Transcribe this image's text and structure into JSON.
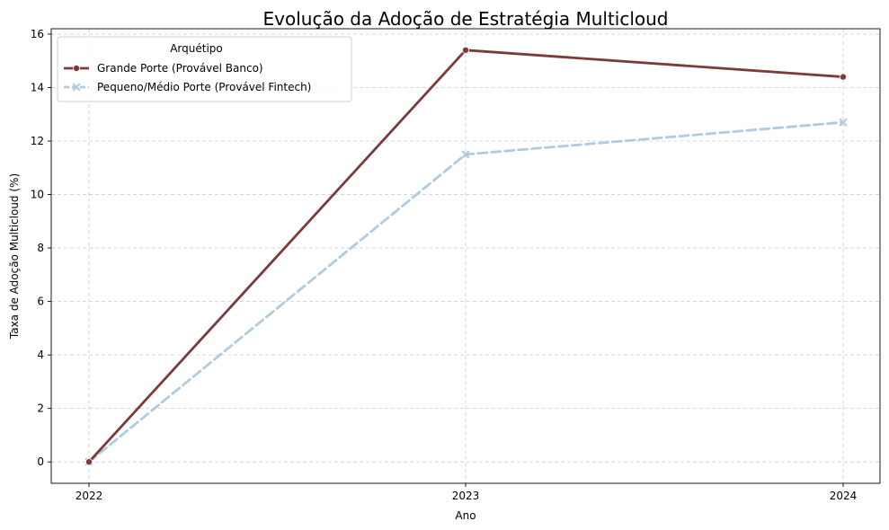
{
  "chart_data": {
    "type": "line",
    "title": "Evolução da Adoção de Estratégia Multicloud",
    "xlabel": "Ano",
    "ylabel": "Taxa de Adoção Multicloud (%)",
    "categories": [
      "2022",
      "2023",
      "2024"
    ],
    "ylim": [
      -0.8,
      16.2
    ],
    "yticks": [
      0,
      2,
      4,
      6,
      8,
      10,
      12,
      14,
      16
    ],
    "grid": true,
    "legend": {
      "title": "Arquétipo",
      "placement": "top-left"
    },
    "series": [
      {
        "name": "Grande Porte (Provável Banco)",
        "values": [
          0,
          15.4,
          14.4
        ],
        "color": "#7b3b3b",
        "line_style": "solid",
        "marker": "circle"
      },
      {
        "name": "Pequeno/Médio Porte (Provável Fintech)",
        "values": [
          0,
          11.5,
          12.7
        ],
        "color": "#b0cbdf",
        "line_style": "dashed",
        "marker": "x"
      }
    ]
  }
}
